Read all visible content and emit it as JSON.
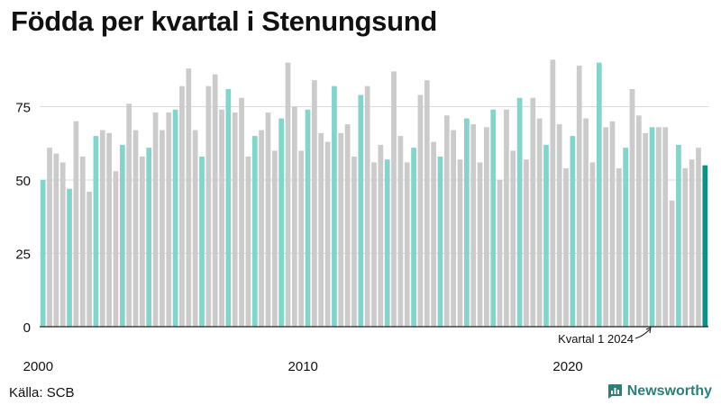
{
  "title": "Födda per kvartal i Stenungsund",
  "source": "Källa: SCB",
  "brand": "Newsworthy",
  "colors": {
    "bar_default": "#cbcbcb",
    "bar_q1": "#85d4cb",
    "bar_highlight": "#118f83",
    "grid": "#d9d9d9",
    "axis": "#222222",
    "brand": "#2d7d78"
  },
  "chart_data": {
    "type": "bar",
    "title": "Födda per kvartal i Stenungsund",
    "xlabel": "",
    "ylabel": "",
    "ylim": [
      0,
      95
    ],
    "yticks": [
      0,
      25,
      50,
      75
    ],
    "xtick_labels": [
      {
        "index": 0,
        "label": "2000"
      },
      {
        "index": 40,
        "label": "2010"
      },
      {
        "index": 80,
        "label": "2020"
      }
    ],
    "annotation": {
      "index": 96,
      "text": "Kvartal 1 2024"
    },
    "start_period": "2000 Q1",
    "values": [
      50,
      61,
      59,
      56,
      47,
      70,
      58,
      46,
      65,
      67,
      66,
      53,
      62,
      76,
      67,
      58,
      61,
      73,
      67,
      73,
      74,
      82,
      88,
      67,
      58,
      82,
      86,
      74,
      81,
      73,
      78,
      58,
      65,
      67,
      73,
      60,
      71,
      90,
      75,
      60,
      74,
      84,
      66,
      63,
      82,
      66,
      69,
      58,
      79,
      82,
      56,
      62,
      57,
      87,
      65,
      56,
      61,
      79,
      84,
      63,
      58,
      72,
      67,
      57,
      71,
      69,
      56,
      68,
      74,
      50,
      74,
      60,
      78,
      57,
      78,
      71,
      62,
      91,
      69,
      54,
      65,
      89,
      71,
      56,
      90,
      68,
      70,
      54,
      61,
      81,
      72,
      66,
      68,
      68,
      68,
      43,
      62,
      54,
      57,
      61,
      55
    ]
  }
}
